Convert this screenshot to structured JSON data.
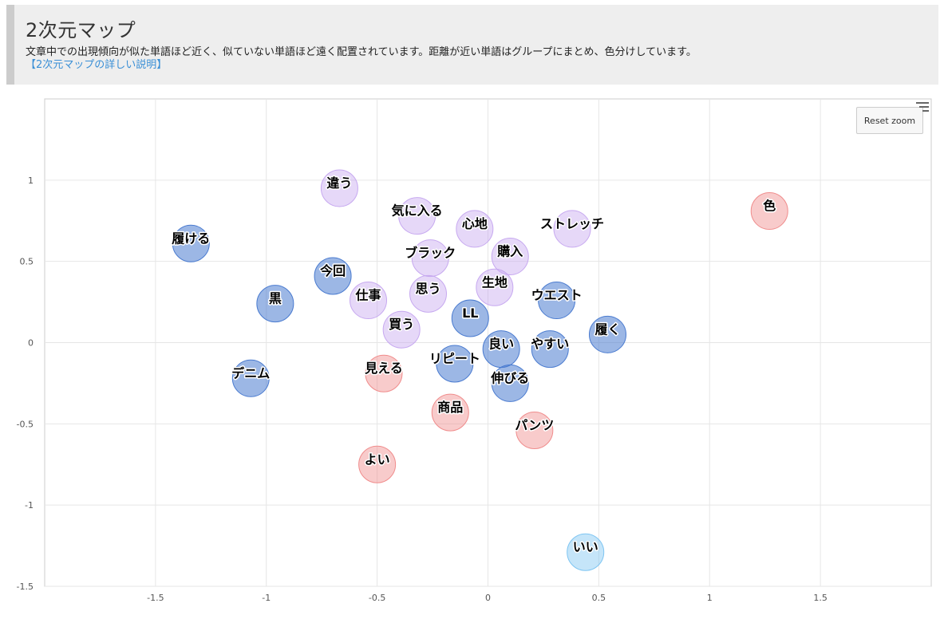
{
  "header": {
    "title": "2次元マップ",
    "description": "文章中での出現傾向が似た単語ほど近く、似ていない単語ほど遠く配置されています。距離が近い単語はグループにまとめ、色分けしています。",
    "link_text": "【2次元マップの詳しい説明】"
  },
  "controls": {
    "reset_zoom_label": "Reset zoom",
    "menu_icon": "hamburger-menu-icon"
  },
  "colors": {
    "blue": "#4a7bd0",
    "purple": "#c7a9f0",
    "red": "#f08c8c",
    "lightblue": "#7ec5f2"
  },
  "chart_data": {
    "type": "scatter",
    "title": "",
    "xlabel": "",
    "ylabel": "",
    "xlim": [
      -2,
      2
    ],
    "ylim": [
      -1.5,
      1.5
    ],
    "xticks": [
      -1.5,
      -1,
      -0.5,
      0,
      0.5,
      1,
      1.5
    ],
    "yticks": [
      1,
      0.5,
      0,
      -0.5,
      -1,
      -1.5
    ],
    "grid": true,
    "legend": "none",
    "points": [
      {
        "label": "違う",
        "x": -0.67,
        "y": 0.95,
        "group": "purple"
      },
      {
        "label": "気に入る",
        "x": -0.32,
        "y": 0.78,
        "group": "purple"
      },
      {
        "label": "心地",
        "x": -0.06,
        "y": 0.7,
        "group": "purple"
      },
      {
        "label": "ストレッチ",
        "x": 0.38,
        "y": 0.7,
        "group": "purple"
      },
      {
        "label": "ブラック",
        "x": -0.26,
        "y": 0.52,
        "group": "purple"
      },
      {
        "label": "購入",
        "x": 0.1,
        "y": 0.53,
        "group": "purple"
      },
      {
        "label": "生地",
        "x": 0.03,
        "y": 0.34,
        "group": "purple"
      },
      {
        "label": "思う",
        "x": -0.27,
        "y": 0.3,
        "group": "purple"
      },
      {
        "label": "仕事",
        "x": -0.54,
        "y": 0.26,
        "group": "purple"
      },
      {
        "label": "買う",
        "x": -0.39,
        "y": 0.08,
        "group": "purple"
      },
      {
        "label": "履ける",
        "x": -1.34,
        "y": 0.61,
        "group": "blue"
      },
      {
        "label": "今回",
        "x": -0.7,
        "y": 0.41,
        "group": "blue"
      },
      {
        "label": "黒",
        "x": -0.96,
        "y": 0.24,
        "group": "blue"
      },
      {
        "label": "LL",
        "x": -0.08,
        "y": 0.15,
        "group": "blue"
      },
      {
        "label": "ウエスト",
        "x": 0.31,
        "y": 0.26,
        "group": "blue"
      },
      {
        "label": "履く",
        "x": 0.54,
        "y": 0.05,
        "group": "blue"
      },
      {
        "label": "良い",
        "x": 0.06,
        "y": -0.04,
        "group": "blue"
      },
      {
        "label": "やすい",
        "x": 0.28,
        "y": -0.04,
        "group": "blue"
      },
      {
        "label": "リピート",
        "x": -0.15,
        "y": -0.13,
        "group": "blue"
      },
      {
        "label": "伸びる",
        "x": 0.1,
        "y": -0.25,
        "group": "blue"
      },
      {
        "label": "デニム",
        "x": -1.07,
        "y": -0.22,
        "group": "blue"
      },
      {
        "label": "色",
        "x": 1.27,
        "y": 0.81,
        "group": "red"
      },
      {
        "label": "見える",
        "x": -0.47,
        "y": -0.19,
        "group": "red"
      },
      {
        "label": "商品",
        "x": -0.17,
        "y": -0.43,
        "group": "red"
      },
      {
        "label": "パンツ",
        "x": 0.21,
        "y": -0.54,
        "group": "red"
      },
      {
        "label": "よい",
        "x": -0.5,
        "y": -0.75,
        "group": "red"
      },
      {
        "label": "いい",
        "x": 0.44,
        "y": -1.29,
        "group": "lightblue"
      }
    ]
  }
}
